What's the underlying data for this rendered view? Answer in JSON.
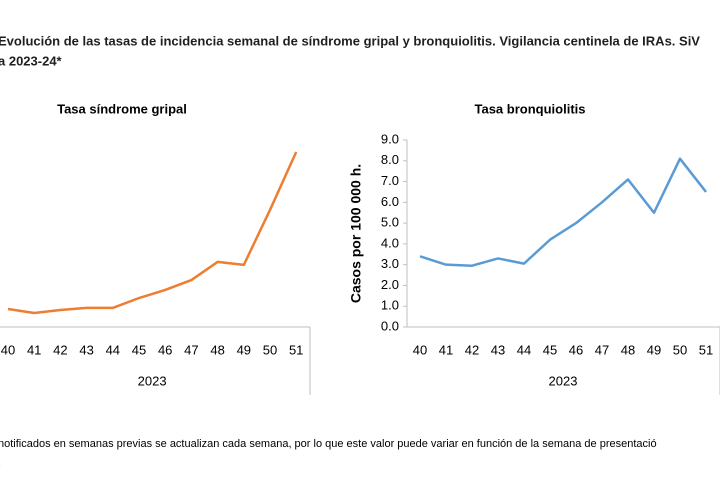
{
  "header": {
    "title_lines": [
      "Evolución de las tasas de incidencia semanal de síndrome gripal y bronquiolitis. Vigilancia centinela de IRAs. SiV",
      "a 2023-24*"
    ]
  },
  "footnote_lines": [
    "notificados en semanas previas se actualizan cada semana, por lo que este valor puede variar en función de la semana de presentació",
    "."
  ],
  "chart_data": [
    {
      "type": "line",
      "title": "Tasa síndrome gripal",
      "group_label": "2023",
      "categories": [
        "40",
        "41",
        "42",
        "43",
        "44",
        "45",
        "46",
        "47",
        "48",
        "49",
        "50",
        "51"
      ],
      "series": [
        {
          "name": "Tasa síndrome gripal",
          "color": "#ed7d31",
          "values": [
            9.6,
            7.5,
            9.1,
            10.2,
            10.2,
            15.5,
            19.8,
            25.1,
            34.8,
            33.2,
            62.6,
            93.6
          ]
        }
      ],
      "ylim": [
        0,
        100
      ]
    },
    {
      "type": "line",
      "title": "Tasa bronquiolitis",
      "group_label": "2023",
      "y_label": "Casos por 100 000 h.",
      "categories": [
        "40",
        "41",
        "42",
        "43",
        "44",
        "45",
        "46",
        "47",
        "48",
        "49",
        "50",
        "51"
      ],
      "series": [
        {
          "name": "Tasa bronquiolitis",
          "color": "#5b9bd5",
          "values": [
            3.4,
            3.0,
            2.95,
            3.3,
            3.05,
            4.2,
            5.0,
            6.0,
            7.1,
            5.5,
            8.1,
            6.5
          ]
        }
      ],
      "ylim": [
        0,
        9
      ],
      "yticks": [
        {
          "value": 0,
          "label": "0.0"
        },
        {
          "value": 1,
          "label": "1.0"
        },
        {
          "value": 2,
          "label": "2.0"
        },
        {
          "value": 3,
          "label": "3.0"
        },
        {
          "value": 4,
          "label": "4.0"
        },
        {
          "value": 5,
          "label": "5.0"
        },
        {
          "value": 6,
          "label": "6.0"
        },
        {
          "value": 7,
          "label": "7.0"
        },
        {
          "value": 8,
          "label": "8.0"
        },
        {
          "value": 9,
          "label": "9.0"
        }
      ]
    }
  ]
}
